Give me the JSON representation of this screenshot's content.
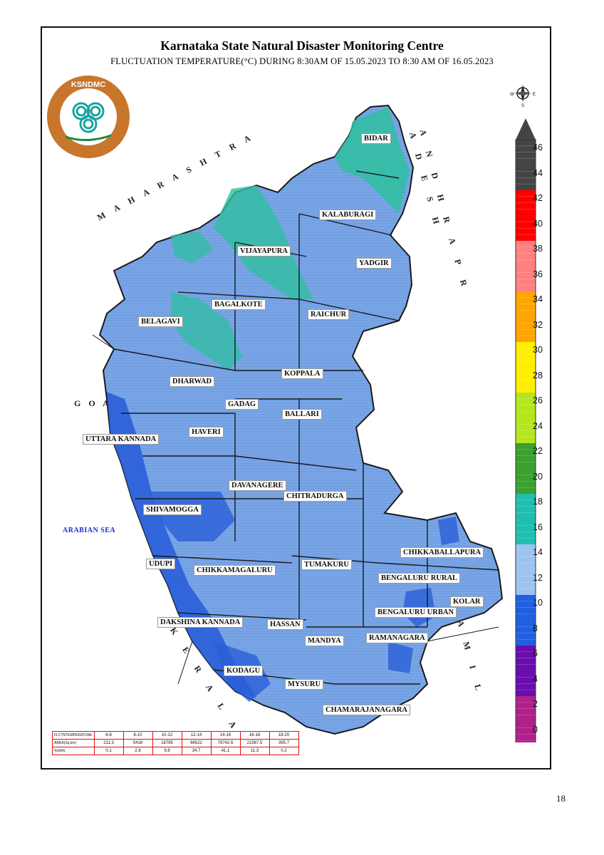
{
  "header": {
    "title": "Karnataka State Natural Disaster Monitoring Centre",
    "subtitle": "FLUCTUATION TEMPERATURE(°C) DURING 8:30AM OF 15.05.2023 TO 8:30 AM OF 16.05.2023"
  },
  "logo": {
    "text": "KSNDMC"
  },
  "compass": {
    "n": "N",
    "s": "S",
    "e": "E",
    "w": "W"
  },
  "states": {
    "maharashtra": "M A H A R A S H T R A",
    "goa": "G O A",
    "andhra": "A N D H R A   P R A D E S H",
    "tamil": "T A M I L",
    "kerala": "K E R A L A"
  },
  "sea_label": "ARABIAN SEA",
  "districts": [
    "BIDAR",
    "KALABURAGI",
    "VIJAYAPURA",
    "YADGIR",
    "BAGALKOTE",
    "RAICHUR",
    "BELAGAVI",
    "KOPPALA",
    "DHARWAD",
    "GADAG",
    "BALLARI",
    "HAVERI",
    "UTTARA KANNADA",
    "DAVANAGERE",
    "CHITRADURGA",
    "SHIVAMOGGA",
    "UDUPI",
    "CHIKKAMAGALURU",
    "TUMAKURU",
    "CHIKKABALLAPURA",
    "BENGALURU RURAL",
    "KOLAR",
    "BENGALURU URBAN",
    "DAKSHINA KANNADA",
    "HASSAN",
    "MANDYA",
    "RAMANAGARA",
    "KODAGU",
    "MYSURU",
    "CHAMARAJANAGARA"
  ],
  "legend": {
    "ticks": [
      "46",
      "44",
      "42",
      "40",
      "38",
      "36",
      "34",
      "32",
      "30",
      "28",
      "26",
      "24",
      "22",
      "20",
      "18",
      "16",
      "14",
      "12",
      "10",
      "8",
      "6",
      "4",
      "2",
      "0"
    ],
    "colors": [
      "#444444",
      "#444444",
      "#ff0000",
      "#ff0000",
      "#ff8080",
      "#ff8080",
      "#ffa500",
      "#ffa500",
      "#ffee00",
      "#ffee00",
      "#b5e61d",
      "#b5e61d",
      "#3aa02e",
      "#3aa02e",
      "#1fbfb0",
      "#1fbfb0",
      "#9dc3f0",
      "#9dc3f0",
      "#1f5fe0",
      "#1f5fe0",
      "#6a0dad",
      "#6a0dad",
      "#b0208a",
      "#b0208a"
    ]
  },
  "stats_table": {
    "rows": [
      {
        "label": "FLCTNTEMPERATURE",
        "values": [
          "6-8",
          "8-10",
          "10-12",
          "12-14",
          "14-16",
          "16-18",
          "18-20"
        ]
      },
      {
        "label": "AREA(Sq.km)",
        "values": [
          "211.3",
          "5418",
          "18785",
          "66522",
          "78742.6",
          "21567.5",
          "395.7"
        ]
      },
      {
        "label": "%of(A)",
        "values": [
          "0.1",
          "2.8",
          "9.8",
          "34.7",
          "41.1",
          "11.3",
          "0.2"
        ]
      }
    ]
  },
  "page_number": "18"
}
